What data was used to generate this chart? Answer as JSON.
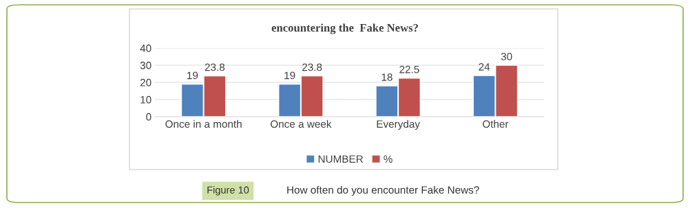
{
  "chart_data": {
    "type": "bar",
    "title": "encountering the  Fake News?",
    "categories": [
      "Once in a month",
      "Once a week",
      "Everyday",
      "Other"
    ],
    "series": [
      {
        "name": "NUMBER",
        "color": "#4f81bd",
        "values": [
          19,
          19,
          18,
          24
        ]
      },
      {
        "name": "%",
        "color": "#c0504d",
        "values": [
          23.8,
          23.8,
          22.5,
          30
        ]
      }
    ],
    "ylim": [
      0,
      40
    ],
    "yticks": [
      0,
      10,
      20,
      30,
      40
    ],
    "grid": "y",
    "legend": "bottom",
    "data_labels": true,
    "annotations": [
      "Figure 10",
      "How often do you encounter Fake News?"
    ]
  }
}
